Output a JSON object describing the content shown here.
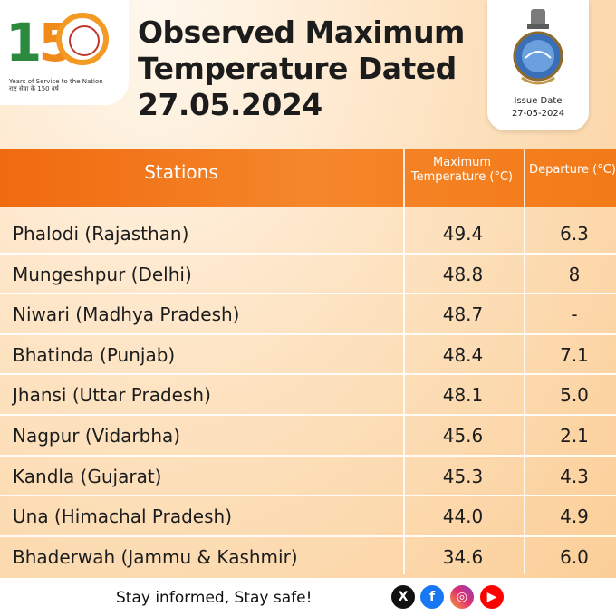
{
  "header": {
    "logo_number": "150",
    "logo_tagline": "Years of Service to the Nation",
    "logo_tagline_hindi": "राष्ट्र सेवा के 150 वर्ष",
    "title": "Observed Maximum Temperature Dated 27.05.2024",
    "issue_label": "Issue Date",
    "issue_date": "27-05-2024"
  },
  "table": {
    "headers": {
      "stations": "Stations",
      "max_temp": "Maximum Temperature (°C)",
      "departure": "Departure (°C)"
    },
    "rows": [
      {
        "station": "Phalodi (Rajasthan)",
        "temp": "49.4",
        "departure": "6.3"
      },
      {
        "station": "Mungeshpur (Delhi)",
        "temp": "48.8",
        "departure": "8"
      },
      {
        "station": "Niwari (Madhya Pradesh)",
        "temp": "48.7",
        "departure": "-"
      },
      {
        "station": "Bhatinda (Punjab)",
        "temp": "48.4",
        "departure": "7.1"
      },
      {
        "station": "Jhansi (Uttar Pradesh)",
        "temp": "48.1",
        "departure": "5.0"
      },
      {
        "station": "Nagpur (Vidarbha)",
        "temp": "45.6",
        "departure": "2.1"
      },
      {
        "station": "Kandla (Gujarat)",
        "temp": "45.3",
        "departure": "4.3"
      },
      {
        "station": "Una (Himachal Pradesh)",
        "temp": "44.0",
        "departure": "4.9"
      },
      {
        "station": "Bhaderwah (Jammu & Kashmir)",
        "temp": "34.6",
        "departure": "6.0"
      }
    ]
  },
  "footer": {
    "message": "Stay informed, Stay safe!",
    "icons": [
      "x-icon",
      "facebook-icon",
      "instagram-icon",
      "youtube-icon"
    ]
  },
  "colors": {
    "header_orange": "#f06a10",
    "background_peach": "#fbd2a0",
    "logo_green": "#2b8a3e",
    "logo_orange": "#f08a1a"
  }
}
